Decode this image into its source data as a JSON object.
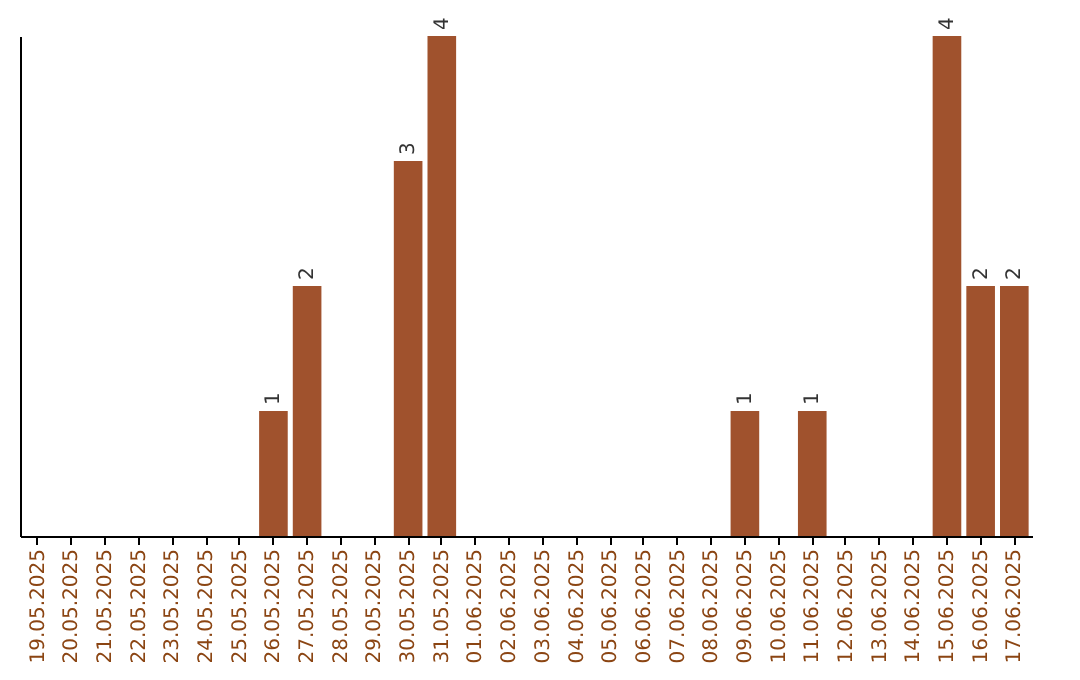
{
  "chart_data": {
    "type": "bar",
    "categories": [
      "19.05.2025",
      "20.05.2025",
      "21.05.2025",
      "22.05.2025",
      "23.05.2025",
      "24.05.2025",
      "25.05.2025",
      "26.05.2025",
      "27.05.2025",
      "28.05.2025",
      "29.05.2025",
      "30.05.2025",
      "31.05.2025",
      "01.06.2025",
      "02.06.2025",
      "03.06.2025",
      "04.06.2025",
      "05.06.2025",
      "06.06.2025",
      "07.06.2025",
      "08.06.2025",
      "09.06.2025",
      "10.06.2025",
      "11.06.2025",
      "12.06.2025",
      "13.06.2025",
      "14.06.2025",
      "15.06.2025",
      "16.06.2025",
      "17.06.2025"
    ],
    "values": [
      0,
      0,
      0,
      0,
      0,
      0,
      0,
      1,
      2,
      0,
      0,
      3,
      4,
      0,
      0,
      0,
      0,
      0,
      0,
      0,
      0,
      1,
      0,
      1,
      0,
      0,
      0,
      4,
      2,
      2
    ],
    "value_labels": [
      null,
      null,
      null,
      null,
      null,
      null,
      null,
      "1",
      "2",
      null,
      null,
      "3",
      "4",
      null,
      null,
      null,
      null,
      null,
      null,
      null,
      null,
      "1",
      null,
      "1",
      null,
      null,
      null,
      "4",
      "2",
      "2"
    ],
    "color": "#a0522d",
    "ylim": [
      0,
      4
    ],
    "tick_labels": "x",
    "grid": false
  }
}
